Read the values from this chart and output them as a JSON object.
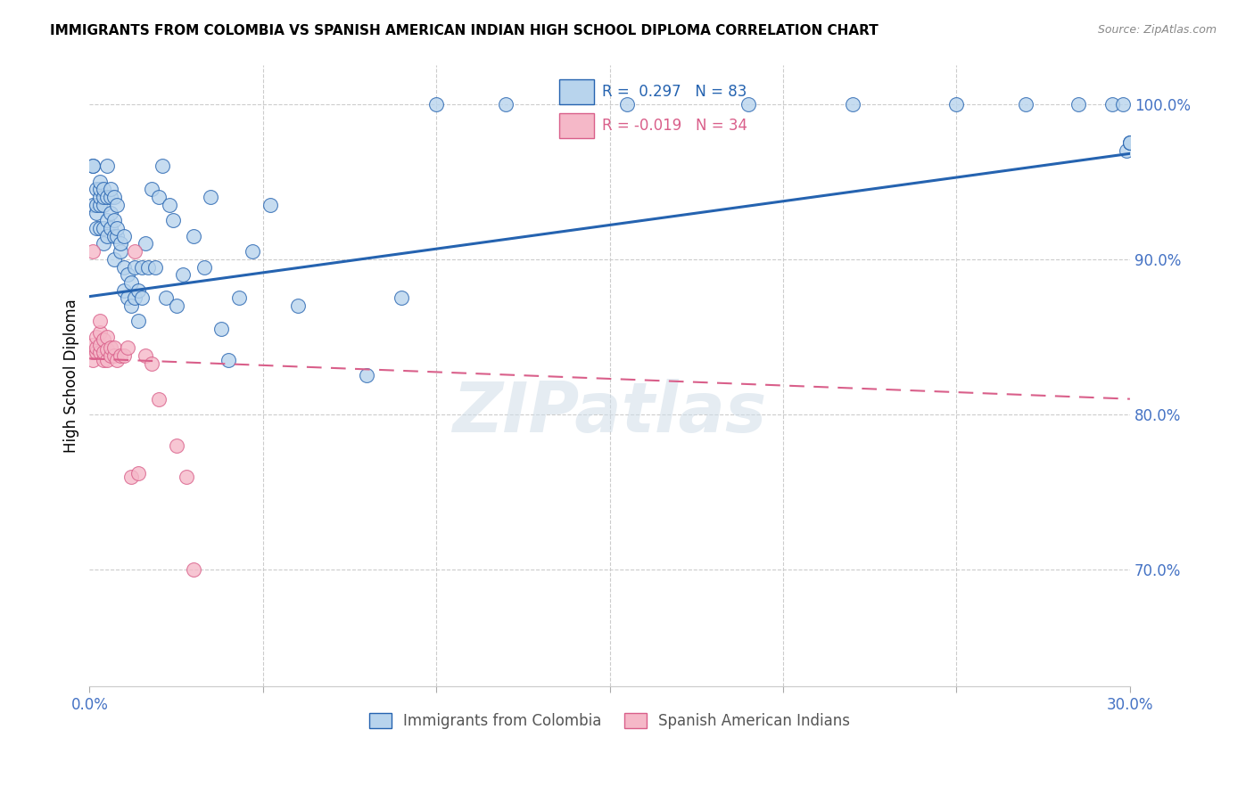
{
  "title": "IMMIGRANTS FROM COLOMBIA VS SPANISH AMERICAN INDIAN HIGH SCHOOL DIPLOMA CORRELATION CHART",
  "source": "Source: ZipAtlas.com",
  "ylabel": "High School Diploma",
  "x_min": 0.0,
  "x_max": 0.3,
  "y_min": 0.625,
  "y_max": 1.025,
  "x_ticks": [
    0.0,
    0.05,
    0.1,
    0.15,
    0.2,
    0.25,
    0.3
  ],
  "x_tick_labels": [
    "0.0%",
    "",
    "",
    "",
    "",
    "",
    "30.0%"
  ],
  "y_ticks_right": [
    0.7,
    0.8,
    0.9,
    1.0
  ],
  "y_tick_labels_right": [
    "70.0%",
    "80.0%",
    "90.0%",
    "100.0%"
  ],
  "color_colombia": "#b8d4ed",
  "color_indian": "#f5b8c8",
  "color_line_colombia": "#2563b0",
  "color_line_indian": "#d95f8a",
  "color_axis_labels": "#4472c4",
  "watermark": "ZIPatlas",
  "colombia_x": [
    0.001,
    0.001,
    0.001,
    0.002,
    0.002,
    0.002,
    0.002,
    0.003,
    0.003,
    0.003,
    0.003,
    0.003,
    0.004,
    0.004,
    0.004,
    0.004,
    0.004,
    0.005,
    0.005,
    0.005,
    0.005,
    0.006,
    0.006,
    0.006,
    0.006,
    0.007,
    0.007,
    0.007,
    0.007,
    0.008,
    0.008,
    0.008,
    0.009,
    0.009,
    0.01,
    0.01,
    0.01,
    0.011,
    0.011,
    0.012,
    0.012,
    0.013,
    0.013,
    0.014,
    0.014,
    0.015,
    0.015,
    0.016,
    0.017,
    0.018,
    0.019,
    0.02,
    0.021,
    0.022,
    0.023,
    0.024,
    0.025,
    0.027,
    0.03,
    0.033,
    0.035,
    0.038,
    0.04,
    0.043,
    0.047,
    0.052,
    0.06,
    0.08,
    0.09,
    0.1,
    0.12,
    0.155,
    0.19,
    0.22,
    0.25,
    0.27,
    0.285,
    0.295,
    0.298,
    0.299,
    0.3,
    0.3,
    0.3
  ],
  "colombia_y": [
    0.935,
    0.96,
    0.96,
    0.92,
    0.93,
    0.935,
    0.945,
    0.92,
    0.935,
    0.94,
    0.945,
    0.95,
    0.91,
    0.92,
    0.935,
    0.94,
    0.945,
    0.915,
    0.925,
    0.94,
    0.96,
    0.92,
    0.93,
    0.94,
    0.945,
    0.9,
    0.915,
    0.925,
    0.94,
    0.915,
    0.92,
    0.935,
    0.905,
    0.91,
    0.88,
    0.895,
    0.915,
    0.875,
    0.89,
    0.87,
    0.885,
    0.875,
    0.895,
    0.86,
    0.88,
    0.875,
    0.895,
    0.91,
    0.895,
    0.945,
    0.895,
    0.94,
    0.96,
    0.875,
    0.935,
    0.925,
    0.87,
    0.89,
    0.915,
    0.895,
    0.94,
    0.855,
    0.835,
    0.875,
    0.905,
    0.935,
    0.87,
    0.825,
    0.875,
    1.0,
    1.0,
    1.0,
    1.0,
    1.0,
    1.0,
    1.0,
    1.0,
    1.0,
    1.0,
    0.97,
    0.975,
    0.975,
    0.975
  ],
  "indian_x": [
    0.001,
    0.001,
    0.001,
    0.001,
    0.002,
    0.002,
    0.002,
    0.003,
    0.003,
    0.003,
    0.003,
    0.004,
    0.004,
    0.004,
    0.005,
    0.005,
    0.005,
    0.006,
    0.006,
    0.007,
    0.007,
    0.008,
    0.009,
    0.01,
    0.011,
    0.012,
    0.013,
    0.014,
    0.016,
    0.018,
    0.02,
    0.025,
    0.028,
    0.03
  ],
  "indian_y": [
    0.835,
    0.84,
    0.845,
    0.905,
    0.84,
    0.843,
    0.85,
    0.84,
    0.845,
    0.853,
    0.86,
    0.835,
    0.84,
    0.848,
    0.835,
    0.842,
    0.85,
    0.838,
    0.843,
    0.838,
    0.843,
    0.835,
    0.838,
    0.838,
    0.843,
    0.76,
    0.905,
    0.762,
    0.838,
    0.833,
    0.81,
    0.78,
    0.76,
    0.7
  ],
  "blue_trend_x0": 0.0,
  "blue_trend_y0": 0.876,
  "blue_trend_x1": 0.3,
  "blue_trend_y1": 0.968,
  "pink_trend_x0": 0.0,
  "pink_trend_y0": 0.836,
  "pink_trend_x1": 0.3,
  "pink_trend_y1": 0.81
}
